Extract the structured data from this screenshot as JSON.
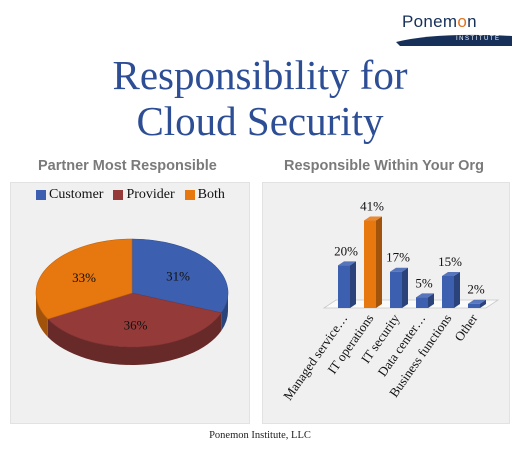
{
  "logo": {
    "name": "Ponemon",
    "tagline": "INSTITUTE"
  },
  "title": {
    "line1": "Responsibility for",
    "line2": "Cloud Security"
  },
  "footer": "Ponemon Institute, LLC",
  "colors": {
    "customer": "#3c5fb0",
    "provider": "#943b3a",
    "both": "#e7770f",
    "bar_blue": "#3c5fb0",
    "bar_orange": "#e7770f",
    "title": "#2d4e95"
  },
  "chart_data": [
    {
      "type": "pie",
      "title": "Partner Most Responsible",
      "legend_position": "top",
      "labels": [
        "Customer",
        "Provider",
        "Both"
      ],
      "values": [
        31,
        36,
        33
      ],
      "value_labels": [
        "31%",
        "36%",
        "33%"
      ]
    },
    {
      "type": "bar",
      "title": "Responsible Within Your Org",
      "categories": [
        "Managed service…",
        "IT operations",
        "IT security",
        "Data center…",
        "Business functions",
        "Other"
      ],
      "values": [
        20,
        41,
        17,
        5,
        15,
        2
      ],
      "value_labels": [
        "20%",
        "41%",
        "17%",
        "5%",
        "15%",
        "2%"
      ],
      "highlight_index": 1,
      "grid": false
    }
  ]
}
